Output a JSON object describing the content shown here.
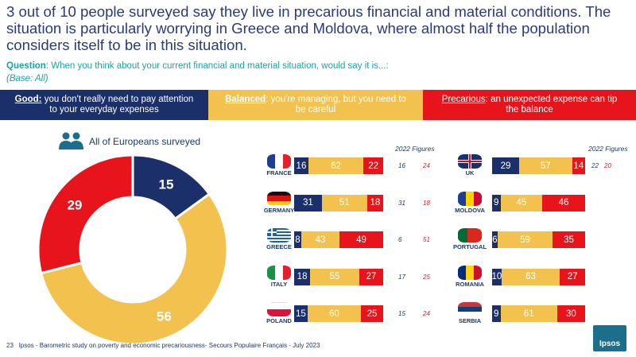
{
  "title": "3 out of 10 people surveyed say they live in precarious financial and material conditions. The situation is particularly worrying in Greece and Moldova, where almost half the population considers itself to be in this situation.",
  "question_label": "Question",
  "question_text": ": When you think about your current financial and material situation, would say it is...:",
  "base": "(Base: All)",
  "legend": {
    "good_key": "Good:",
    "good_text": " you don't really need to pay attention to your everyday expenses",
    "balanced_key": "Balanced",
    "balanced_text": ": you're managing, but you need to be careful",
    "precarious_key": "Precarious",
    "precarious_text": ": an unexpected expense can tip the balance"
  },
  "colors": {
    "good": "#1b2f6b",
    "balanced": "#f2c14e",
    "precarious": "#e8141b"
  },
  "all_label": "All of Europeans surveyed",
  "figures_2022_label": "2022 Figures",
  "footer_page": "23",
  "footer_text": "Ipsos - Barometric study on poverty and economic precariousness- Secours Populaire Français - July 2023",
  "logo_text": "Ipsos",
  "chart_data": [
    {
      "type": "pie",
      "title": "All of Europeans surveyed",
      "categories": [
        "Good",
        "Balanced",
        "Precarious"
      ],
      "values": [
        15,
        56,
        29
      ]
    },
    {
      "type": "bar",
      "stacked": true,
      "orientation": "horizontal",
      "categories": [
        "FRANCE",
        "GERMANY",
        "GREECE",
        "ITALY",
        "POLAND",
        "UK",
        "MOLDOVA",
        "PORTUGAL",
        "ROMANIA",
        "SERBIA"
      ],
      "series": [
        {
          "name": "Good",
          "values": [
            16,
            31,
            8,
            18,
            15,
            29,
            9,
            6,
            10,
            9
          ]
        },
        {
          "name": "Balanced",
          "values": [
            62,
            51,
            43,
            55,
            60,
            57,
            45,
            59,
            63,
            61
          ]
        },
        {
          "name": "Precarious",
          "values": [
            22,
            18,
            49,
            27,
            25,
            14,
            46,
            35,
            27,
            30
          ]
        }
      ],
      "figures_2022": {
        "good": [
          16,
          31,
          6,
          17,
          15,
          22,
          null,
          null,
          null,
          null
        ],
        "precarious": [
          24,
          18,
          51,
          25,
          24,
          20,
          null,
          null,
          null,
          null
        ]
      }
    }
  ]
}
